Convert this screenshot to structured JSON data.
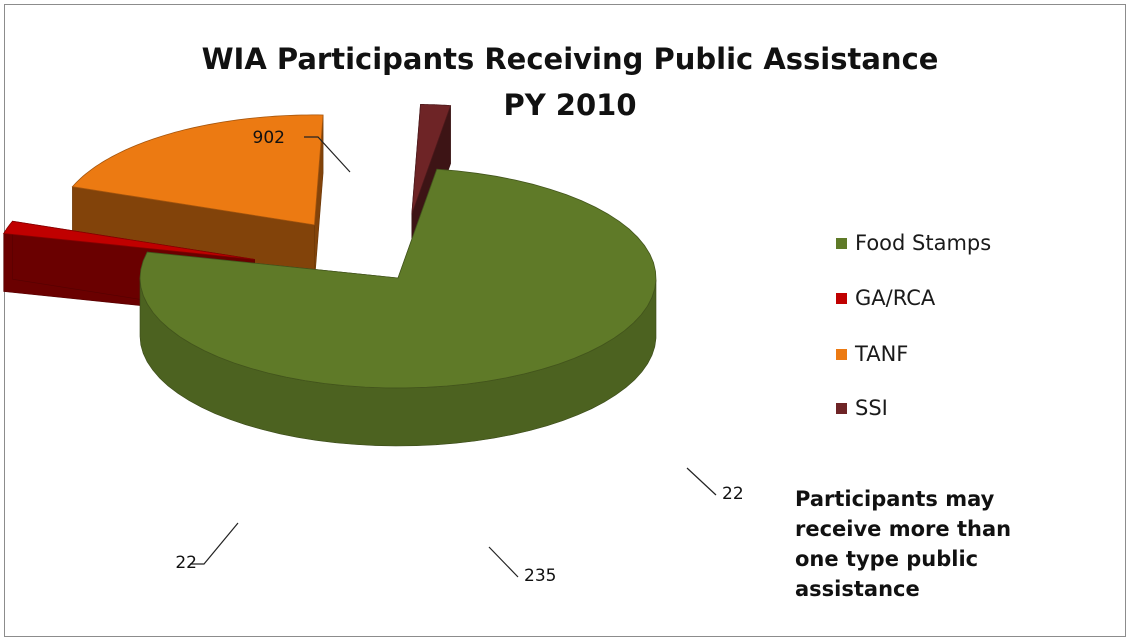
{
  "chart_data": {
    "type": "pie",
    "title": "WIA Participants  Receiving Public Assistance",
    "subtitle": "PY 2010",
    "categories": [
      "Food Stamps",
      "GA/RCA",
      "TANF",
      "SSI"
    ],
    "values": [
      902,
      22,
      235,
      22
    ],
    "data_labels": [
      "902",
      "22",
      "235",
      "22"
    ],
    "colors": [
      "#5f7a28",
      "#c00000",
      "#ec7a12",
      "#6e2426"
    ],
    "legend_position": "right",
    "style": "3d-exploded",
    "note": "Participants may receive more than one type public assistance"
  }
}
